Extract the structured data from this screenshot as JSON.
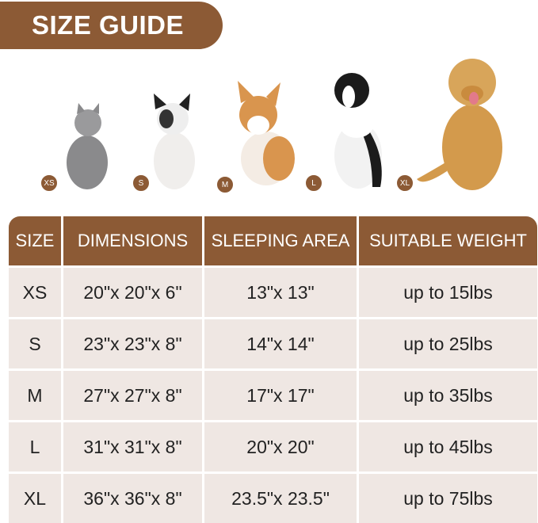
{
  "title": "SIZE GUIDE",
  "colors": {
    "brand": "#8c5a35",
    "cell": "#efe7e3"
  },
  "animals": [
    {
      "badge": "XS",
      "icon": "cat-icon"
    },
    {
      "badge": "S",
      "icon": "french-bulldog-icon"
    },
    {
      "badge": "M",
      "icon": "corgi-icon"
    },
    {
      "badge": "L",
      "icon": "border-collie-icon"
    },
    {
      "badge": "XL",
      "icon": "golden-retriever-icon"
    }
  ],
  "table": {
    "headers": [
      "SIZE",
      "DIMENSIONS",
      "SLEEPING AREA",
      "SUITABLE WEIGHT"
    ],
    "rows": [
      [
        "XS",
        "20\"x 20\"x 6\"",
        "13\"x 13\"",
        "up to 15lbs"
      ],
      [
        "S",
        "23\"x 23\"x 8\"",
        "14\"x 14\"",
        "up to 25lbs"
      ],
      [
        "M",
        "27\"x 27\"x 8\"",
        "17\"x 17\"",
        "up to 35lbs"
      ],
      [
        "L",
        "31\"x 31\"x 8\"",
        "20\"x 20\"",
        "up to 45lbs"
      ],
      [
        "XL",
        "36\"x 36\"x 8\"",
        "23.5\"x 23.5\"",
        "up to 75lbs"
      ]
    ]
  }
}
